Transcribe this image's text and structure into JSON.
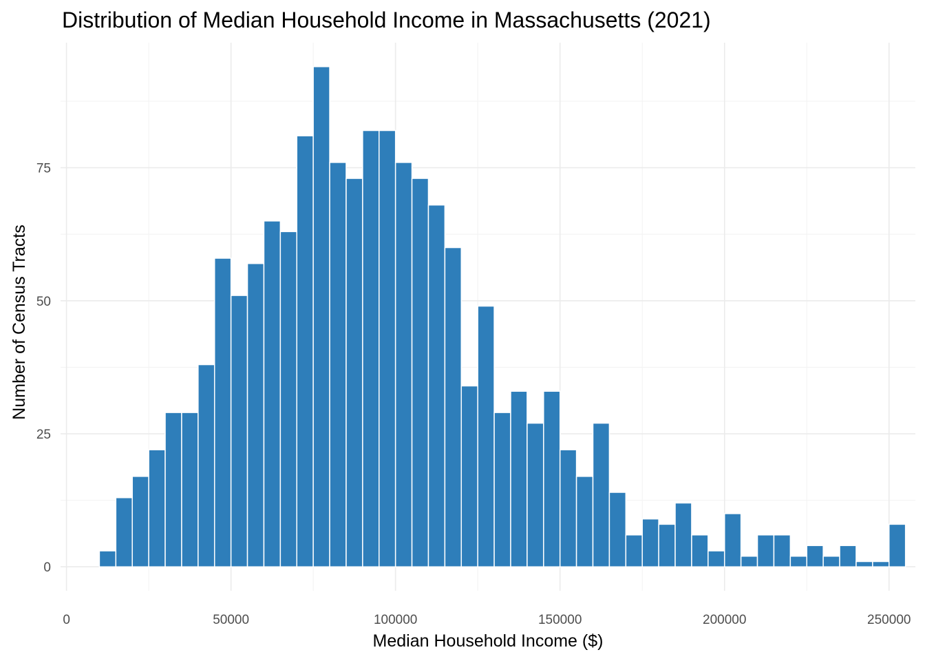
{
  "chart_data": {
    "type": "bar",
    "title": "Distribution of Median Household Income in Massachusetts (2021)",
    "xlabel": "Median Household Income ($)",
    "ylabel": "Number of Census Tracts",
    "bar_color": "#2E7EBA",
    "background": "#FFFFFF",
    "grid": true,
    "xlim": [
      -1800,
      258000
    ],
    "ylim": [
      -4.5,
      98.5
    ],
    "x_ticks": [
      0,
      50000,
      100000,
      150000,
      200000,
      250000
    ],
    "x_tick_labels": [
      "0",
      "50000",
      "100000",
      "150000",
      "200000",
      "250000"
    ],
    "y_ticks": [
      0,
      25,
      50,
      75
    ],
    "y_tick_labels": [
      "0",
      "25",
      "50",
      "75"
    ],
    "bin_width": 5000,
    "bin_start": 10000,
    "values": [
      3,
      13,
      17,
      22,
      29,
      29,
      38,
      58,
      51,
      57,
      65,
      63,
      81,
      94,
      76,
      73,
      82,
      82,
      76,
      73,
      68,
      60,
      34,
      49,
      29,
      33,
      27,
      33,
      22,
      17,
      27,
      14,
      6,
      9,
      8,
      12,
      6,
      3,
      10,
      2,
      6,
      6,
      2,
      4,
      2,
      4,
      1,
      1,
      8
    ]
  }
}
